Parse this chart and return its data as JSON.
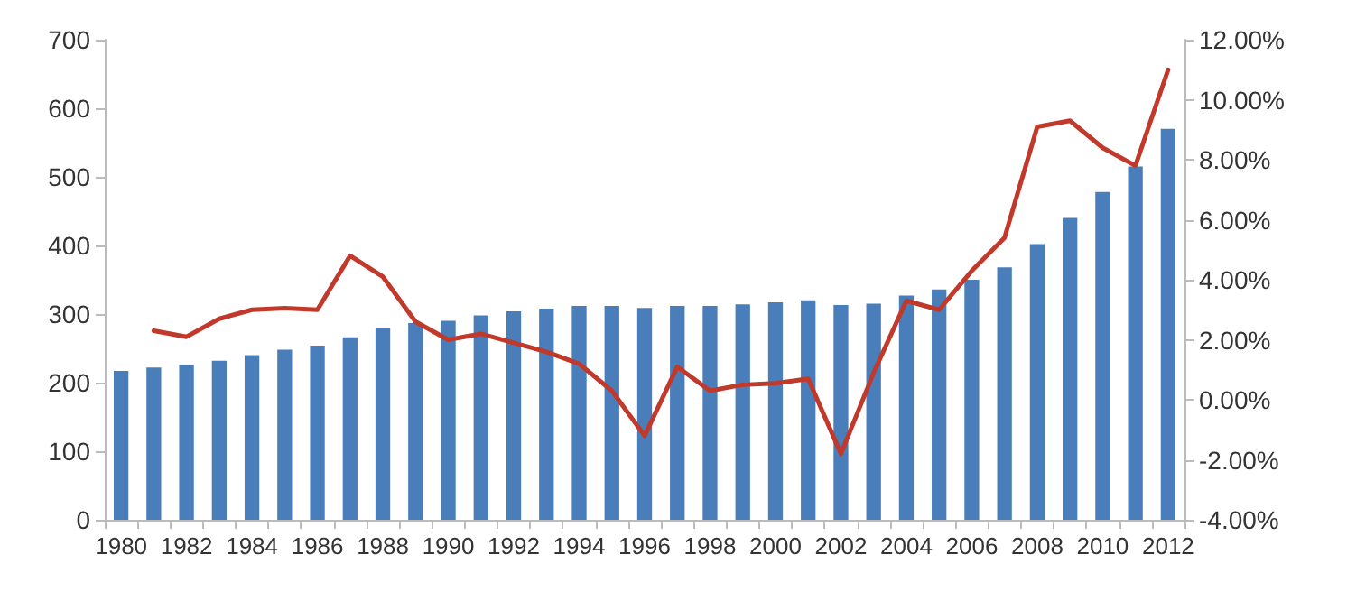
{
  "chart_data": {
    "type": "bar",
    "categories": [
      "1980",
      null,
      "1982",
      null,
      "1984",
      null,
      "1986",
      null,
      "1988",
      null,
      "1990",
      null,
      "1992",
      null,
      "1994",
      null,
      "1996",
      null,
      "1998",
      null,
      "2000",
      null,
      "2002",
      null,
      "2004",
      null,
      "2006",
      null,
      "2008",
      null,
      "2010",
      null,
      "2012"
    ],
    "series": [
      {
        "color": "#4a7ebb",
        "values": [
          217,
          222,
          226,
          232,
          240,
          248,
          254,
          266,
          279,
          287,
          290,
          298,
          304,
          308,
          312,
          312,
          309,
          312,
          312,
          314,
          317,
          320,
          313,
          315,
          327,
          336,
          350,
          368,
          402,
          440,
          478,
          515,
          570
        ]
      },
      {
        "type": "line",
        "axis": "y2",
        "color": "#c0392b",
        "values": [
          null,
          2.3,
          2.1,
          2.7,
          3.0,
          3.05,
          3.0,
          4.8,
          4.1,
          2.6,
          2.0,
          2.2,
          1.9,
          1.6,
          1.2,
          0.3,
          -1.2,
          1.1,
          0.3,
          0.5,
          0.55,
          0.7,
          -1.8,
          0.9,
          3.3,
          3.0,
          4.3,
          5.4,
          9.1,
          9.3,
          8.4,
          7.8,
          11.0
        ]
      }
    ],
    "ylim": [
      0,
      700
    ],
    "yticks": [
      0,
      100,
      200,
      300,
      400,
      500,
      600,
      700
    ],
    "y2lim": [
      -4,
      12
    ],
    "y2ticks": [
      {
        "value": -4,
        "label": "-4.00%"
      },
      {
        "value": -2,
        "label": "-2.00%"
      },
      {
        "value": 0,
        "label": "0.00%"
      },
      {
        "value": 2,
        "label": "2.00%"
      },
      {
        "value": 4,
        "label": "4.00%"
      },
      {
        "value": 6,
        "label": "6.00%"
      },
      {
        "value": 8,
        "label": "8.00%"
      },
      {
        "value": 10,
        "label": "10.00%"
      },
      {
        "value": 12,
        "label": "12.00%"
      }
    ],
    "grid": false,
    "marker": "none"
  }
}
